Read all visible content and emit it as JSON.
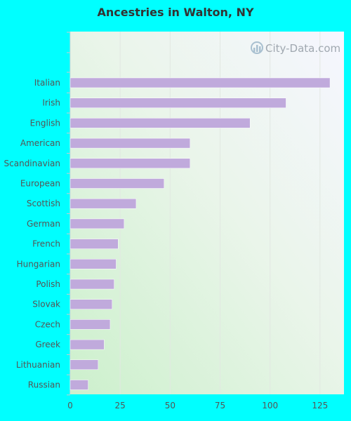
{
  "chart_data": {
    "type": "bar",
    "orientation": "horizontal",
    "title": "Ancestries in Walton, NY",
    "categories": [
      "Italian",
      "Irish",
      "English",
      "American",
      "Scandinavian",
      "European",
      "Scottish",
      "German",
      "French",
      "Hungarian",
      "Polish",
      "Slovak",
      "Czech",
      "Greek",
      "Lithuanian",
      "Russian"
    ],
    "values": [
      130,
      108,
      90,
      60,
      60,
      47,
      33,
      27,
      24,
      23,
      22,
      21,
      20,
      17,
      14,
      9
    ],
    "xlim": [
      0,
      137
    ],
    "xticks": [
      0,
      25,
      50,
      75,
      100,
      125
    ],
    "xlabel": "",
    "ylabel": "",
    "grid": true,
    "bar_color": "#c0aadc",
    "background_color": "#00ffff"
  },
  "watermark": "City-Data.com"
}
